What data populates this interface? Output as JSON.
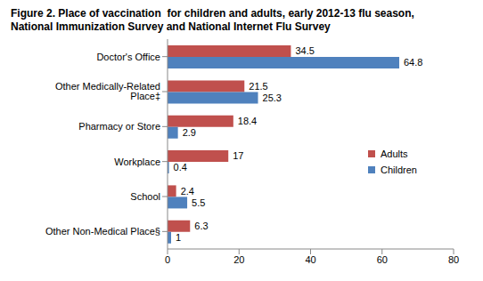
{
  "chart_data": {
    "type": "bar",
    "orientation": "horizontal",
    "title": "Figure 2. Place of vaccination  for children and adults, early 2012-13 flu season, National Immunization Survey and National Internet Flu Survey",
    "categories": [
      "Doctor's Office",
      "Other Medically-Related Place‡",
      "Pharmacy or Store",
      "Workplace",
      "School",
      "Other Non-Medical Place§"
    ],
    "series": [
      {
        "name": "Adults",
        "color": "#c0504d",
        "values": [
          34.5,
          21.5,
          18.4,
          17,
          2.4,
          6.3
        ]
      },
      {
        "name": "Children",
        "color": "#4f81bd",
        "values": [
          64.8,
          25.3,
          2.9,
          0.4,
          5.5,
          1
        ]
      }
    ],
    "xlim": [
      0,
      80
    ],
    "xticks": [
      0,
      20,
      40,
      60,
      80
    ],
    "grid": false,
    "legend": "right",
    "data_labels": true
  }
}
